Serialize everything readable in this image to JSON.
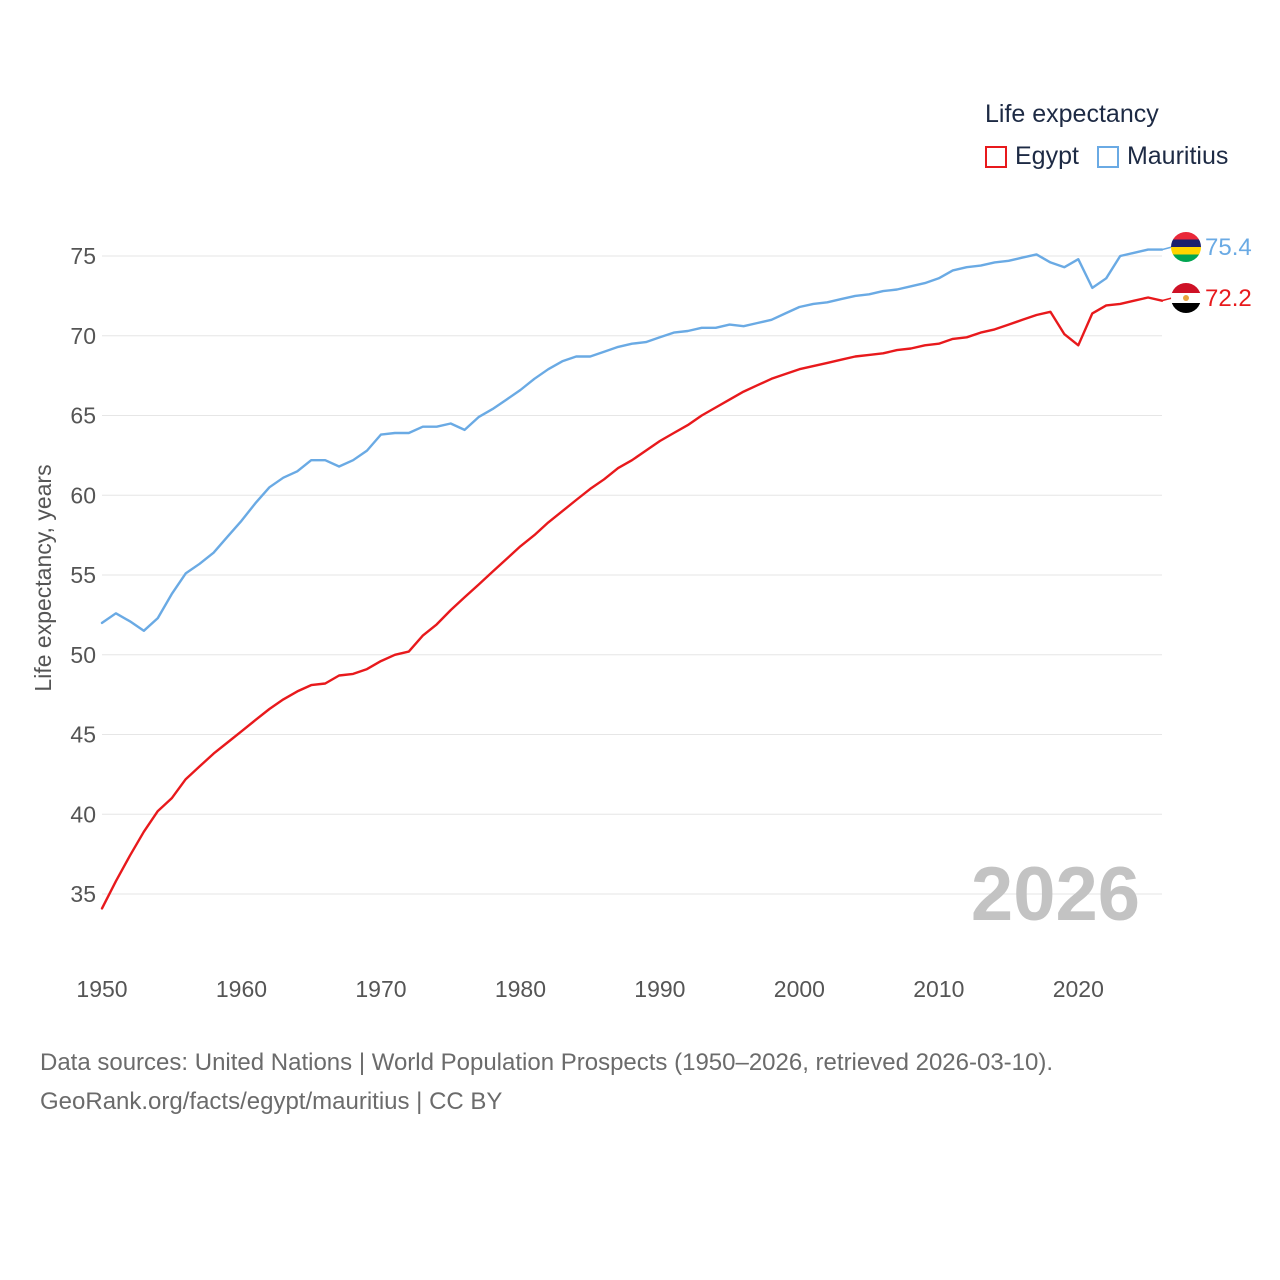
{
  "legend": {
    "title": "Life expectancy",
    "items": [
      {
        "label": "Egypt",
        "color": "#e8191c"
      },
      {
        "label": "Mauritius",
        "color": "#6aaae4"
      }
    ]
  },
  "footer": {
    "line1": "Data sources: United Nations | World Population Prospects (1950–2026, retrieved 2026-03-10).",
    "line2": "GeoRank.org/facts/egypt/mauritius | CC BY"
  },
  "chart_data": {
    "type": "line",
    "title": "Life expectancy",
    "xlabel": "",
    "ylabel": "Life expectancy, years",
    "year_label": "2026",
    "xlim": [
      1950,
      2026
    ],
    "ylim": [
      32,
      78
    ],
    "x_ticks": [
      1950,
      1960,
      1970,
      1980,
      1990,
      2000,
      2010,
      2020
    ],
    "y_ticks": [
      35,
      40,
      45,
      50,
      55,
      60,
      65,
      70,
      75
    ],
    "x": [
      1950,
      1951,
      1952,
      1953,
      1954,
      1955,
      1956,
      1957,
      1958,
      1959,
      1960,
      1961,
      1962,
      1963,
      1964,
      1965,
      1966,
      1967,
      1968,
      1969,
      1970,
      1971,
      1972,
      1973,
      1974,
      1975,
      1976,
      1977,
      1978,
      1979,
      1980,
      1981,
      1982,
      1983,
      1984,
      1985,
      1986,
      1987,
      1988,
      1989,
      1990,
      1991,
      1992,
      1993,
      1994,
      1995,
      1996,
      1997,
      1998,
      1999,
      2000,
      2001,
      2002,
      2003,
      2004,
      2005,
      2006,
      2007,
      2008,
      2009,
      2010,
      2011,
      2012,
      2013,
      2014,
      2015,
      2016,
      2017,
      2018,
      2019,
      2020,
      2021,
      2022,
      2023,
      2024,
      2025,
      2026
    ],
    "series": [
      {
        "name": "Egypt",
        "color": "#e8191c",
        "end_label": "72.2",
        "values": [
          34.1,
          35.8,
          37.4,
          38.9,
          40.2,
          41.0,
          42.2,
          43.0,
          43.8,
          44.5,
          45.2,
          45.9,
          46.6,
          47.2,
          47.7,
          48.1,
          48.2,
          48.7,
          48.8,
          49.1,
          49.6,
          50.0,
          50.2,
          51.2,
          51.9,
          52.8,
          53.6,
          54.4,
          55.2,
          56.0,
          56.8,
          57.5,
          58.3,
          59.0,
          59.7,
          60.4,
          61.0,
          61.7,
          62.2,
          62.8,
          63.4,
          63.9,
          64.4,
          65.0,
          65.5,
          66.0,
          66.5,
          66.9,
          67.3,
          67.6,
          67.9,
          68.1,
          68.3,
          68.5,
          68.7,
          68.8,
          68.9,
          69.1,
          69.2,
          69.4,
          69.5,
          69.8,
          69.9,
          70.2,
          70.4,
          70.7,
          71.0,
          71.3,
          71.5,
          70.1,
          69.4,
          71.4,
          71.9,
          72.0,
          72.2,
          72.4,
          72.2
        ]
      },
      {
        "name": "Mauritius",
        "color": "#6aaae4",
        "end_label": "75.4",
        "values": [
          52.0,
          52.6,
          52.1,
          51.5,
          52.3,
          53.8,
          55.1,
          55.7,
          56.4,
          57.4,
          58.4,
          59.5,
          60.5,
          61.1,
          61.5,
          62.2,
          62.2,
          61.8,
          62.2,
          62.8,
          63.8,
          63.9,
          63.9,
          64.3,
          64.3,
          64.5,
          64.1,
          64.9,
          65.4,
          66.0,
          66.6,
          67.3,
          67.9,
          68.4,
          68.7,
          68.7,
          69.0,
          69.3,
          69.5,
          69.6,
          69.9,
          70.2,
          70.3,
          70.5,
          70.5,
          70.7,
          70.6,
          70.8,
          71.0,
          71.4,
          71.8,
          72.0,
          72.1,
          72.3,
          72.5,
          72.6,
          72.8,
          72.9,
          73.1,
          73.3,
          73.6,
          74.1,
          74.3,
          74.4,
          74.6,
          74.7,
          74.9,
          75.1,
          74.6,
          74.3,
          74.8,
          73.0,
          73.6,
          75.0,
          75.2,
          75.4,
          75.4
        ]
      }
    ]
  }
}
